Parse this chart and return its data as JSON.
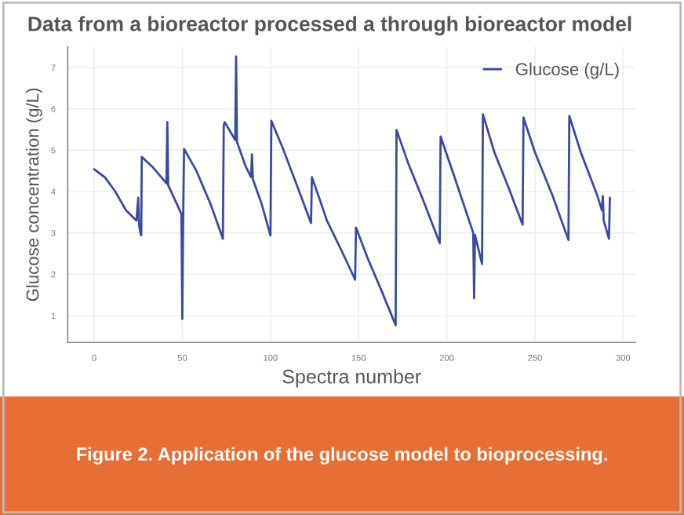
{
  "chart_data": {
    "type": "line",
    "title": "Data from a bioreactor processed a through bioreactor model",
    "xlabel": "Spectra number",
    "ylabel": "Glucose concentration (g/L)",
    "annotations": [
      "Figure 2. Application of the glucose model to bioprocessing."
    ],
    "xlim": [
      -15,
      307
    ],
    "ylim": [
      0.35,
      7.5
    ],
    "xticks": [
      0,
      50,
      100,
      150,
      200,
      250,
      300
    ],
    "yticks": [
      1,
      2,
      3,
      4,
      5,
      6,
      7
    ],
    "grid": true,
    "legend": "top right",
    "marker": "none",
    "line_style": "solid",
    "series": [
      {
        "name": "Glucose (g/L)",
        "color": "#3b4aa0",
        "x": [
          0,
          6,
          12,
          18,
          24,
          25,
          25.5,
          26,
          26.7,
          27,
          33,
          40,
          41,
          41.5,
          42,
          48,
          49.5,
          50,
          50.5,
          51,
          58,
          66,
          73,
          73.5,
          74,
          80,
          80.5,
          81,
          86,
          89,
          89.5,
          90,
          95,
          100,
          100.5,
          107,
          115,
          123,
          123.5,
          128,
          132,
          140,
          148,
          148.5,
          155,
          163,
          171,
          171.5,
          178,
          187,
          196,
          196.5,
          204,
          215,
          215.5,
          216,
          220,
          220.5,
          227,
          235,
          243,
          243.5,
          250,
          260,
          269,
          269.5,
          276,
          285,
          288,
          288.5,
          289,
          292,
          292.5
        ],
        "values": [
          4.54,
          4.35,
          4.0,
          3.55,
          3.3,
          3.85,
          3.2,
          3.05,
          2.94,
          4.84,
          4.6,
          4.25,
          4.2,
          5.68,
          4.15,
          3.6,
          3.45,
          0.92,
          3.4,
          5.03,
          4.5,
          3.7,
          2.86,
          5.6,
          5.68,
          5.25,
          7.27,
          5.2,
          4.6,
          4.35,
          4.9,
          4.3,
          3.7,
          2.94,
          5.71,
          5.05,
          4.15,
          3.24,
          4.35,
          3.8,
          3.3,
          2.6,
          1.87,
          3.13,
          2.4,
          1.6,
          0.77,
          5.49,
          4.7,
          3.75,
          2.75,
          5.33,
          4.4,
          3.0,
          1.42,
          2.95,
          2.25,
          5.87,
          4.95,
          4.1,
          3.2,
          5.79,
          4.95,
          3.9,
          2.83,
          5.83,
          4.95,
          3.95,
          3.55,
          3.89,
          3.3,
          2.86,
          3.85
        ]
      }
    ]
  }
}
